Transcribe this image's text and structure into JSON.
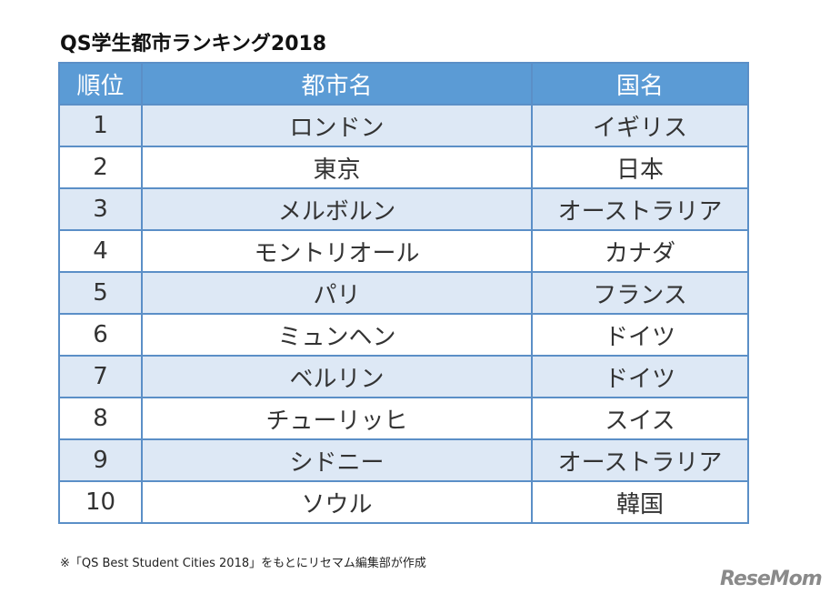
{
  "header": {
    "title": "QS学生都市ランキング2018"
  },
  "table": {
    "columns": [
      "順位",
      "都市名",
      "国名"
    ],
    "rows": [
      [
        1,
        "ロンドン",
        "イギリス"
      ],
      [
        2,
        "東京",
        "日本"
      ],
      [
        3,
        "メルボルン",
        "オーストラリア"
      ],
      [
        4,
        "モントリオール",
        "カナダ"
      ],
      [
        5,
        "パリ",
        "フランス"
      ],
      [
        6,
        "ミュンヘン",
        "ドイツ"
      ],
      [
        7,
        "ベルリン",
        "ドイツ"
      ],
      [
        8,
        "チューリッヒ",
        "スイス"
      ],
      [
        9,
        "シドニー",
        "オーストラリア"
      ],
      [
        10,
        "ソウル",
        "韓国"
      ]
    ]
  },
  "footnote": "※「QS Best Student Cities 2018」をもとにリセマム編集部が作成",
  "logo": "ReseMom"
}
